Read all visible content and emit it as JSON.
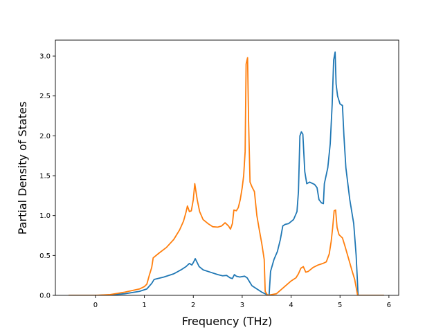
{
  "chart_data": {
    "type": "line",
    "title": "",
    "xlabel": "Frequency (THz)",
    "ylabel": "Partial Density of States",
    "xlim": [
      -0.82,
      6.2
    ],
    "ylim": [
      0.0,
      3.2
    ],
    "xticks": [
      "0",
      "1",
      "2",
      "3",
      "4",
      "5",
      "6"
    ],
    "yticks": [
      "0.0",
      "0.5",
      "1.0",
      "1.5",
      "2.0",
      "2.5",
      "3.0"
    ],
    "grid": false,
    "legend": "none",
    "series": [
      {
        "color": "#1f77b4",
        "points": [
          [
            -0.55,
            0.0
          ],
          [
            0.0,
            0.0
          ],
          [
            0.3,
            0.005
          ],
          [
            0.6,
            0.02
          ],
          [
            0.9,
            0.05
          ],
          [
            1.05,
            0.08
          ],
          [
            1.15,
            0.15
          ],
          [
            1.2,
            0.2
          ],
          [
            1.4,
            0.23
          ],
          [
            1.6,
            0.27
          ],
          [
            1.75,
            0.32
          ],
          [
            1.85,
            0.36
          ],
          [
            1.92,
            0.4
          ],
          [
            1.97,
            0.38
          ],
          [
            2.0,
            0.41
          ],
          [
            2.04,
            0.46
          ],
          [
            2.08,
            0.41
          ],
          [
            2.12,
            0.36
          ],
          [
            2.2,
            0.32
          ],
          [
            2.35,
            0.29
          ],
          [
            2.5,
            0.26
          ],
          [
            2.6,
            0.245
          ],
          [
            2.68,
            0.25
          ],
          [
            2.75,
            0.22
          ],
          [
            2.8,
            0.21
          ],
          [
            2.84,
            0.26
          ],
          [
            2.88,
            0.24
          ],
          [
            2.95,
            0.23
          ],
          [
            3.05,
            0.24
          ],
          [
            3.1,
            0.22
          ],
          [
            3.15,
            0.17
          ],
          [
            3.2,
            0.12
          ],
          [
            3.3,
            0.08
          ],
          [
            3.4,
            0.04
          ],
          [
            3.5,
            0.01
          ],
          [
            3.55,
            0.0
          ],
          [
            3.58,
            0.3
          ],
          [
            3.65,
            0.45
          ],
          [
            3.72,
            0.55
          ],
          [
            3.78,
            0.7
          ],
          [
            3.83,
            0.87
          ],
          [
            3.88,
            0.89
          ],
          [
            3.95,
            0.9
          ],
          [
            4.05,
            0.95
          ],
          [
            4.12,
            1.05
          ],
          [
            4.15,
            1.3
          ],
          [
            4.18,
            2.0
          ],
          [
            4.21,
            2.05
          ],
          [
            4.24,
            2.02
          ],
          [
            4.28,
            1.55
          ],
          [
            4.32,
            1.4
          ],
          [
            4.38,
            1.42
          ],
          [
            4.48,
            1.39
          ],
          [
            4.53,
            1.35
          ],
          [
            4.57,
            1.2
          ],
          [
            4.62,
            1.16
          ],
          [
            4.66,
            1.15
          ],
          [
            4.68,
            1.4
          ],
          [
            4.75,
            1.6
          ],
          [
            4.8,
            1.9
          ],
          [
            4.84,
            2.4
          ],
          [
            4.87,
            2.95
          ],
          [
            4.9,
            3.05
          ],
          [
            4.92,
            2.65
          ],
          [
            4.95,
            2.5
          ],
          [
            5.0,
            2.4
          ],
          [
            5.05,
            2.38
          ],
          [
            5.08,
            2.0
          ],
          [
            5.12,
            1.6
          ],
          [
            5.2,
            1.2
          ],
          [
            5.28,
            0.9
          ],
          [
            5.33,
            0.5
          ],
          [
            5.37,
            0.0
          ],
          [
            5.9,
            0.0
          ]
        ]
      },
      {
        "color": "#ff7f0e",
        "points": [
          [
            -0.55,
            0.0
          ],
          [
            0.0,
            0.0
          ],
          [
            0.3,
            0.01
          ],
          [
            0.6,
            0.04
          ],
          [
            0.9,
            0.08
          ],
          [
            1.0,
            0.11
          ],
          [
            1.05,
            0.14
          ],
          [
            1.1,
            0.25
          ],
          [
            1.15,
            0.35
          ],
          [
            1.18,
            0.47
          ],
          [
            1.3,
            0.53
          ],
          [
            1.45,
            0.6
          ],
          [
            1.6,
            0.7
          ],
          [
            1.72,
            0.82
          ],
          [
            1.8,
            0.93
          ],
          [
            1.85,
            1.04
          ],
          [
            1.88,
            1.12
          ],
          [
            1.92,
            1.05
          ],
          [
            1.96,
            1.06
          ],
          [
            2.0,
            1.2
          ],
          [
            2.03,
            1.4
          ],
          [
            2.08,
            1.2
          ],
          [
            2.13,
            1.05
          ],
          [
            2.2,
            0.95
          ],
          [
            2.3,
            0.9
          ],
          [
            2.4,
            0.86
          ],
          [
            2.5,
            0.855
          ],
          [
            2.58,
            0.87
          ],
          [
            2.65,
            0.91
          ],
          [
            2.72,
            0.87
          ],
          [
            2.76,
            0.83
          ],
          [
            2.8,
            0.9
          ],
          [
            2.83,
            1.07
          ],
          [
            2.88,
            1.06
          ],
          [
            2.92,
            1.1
          ],
          [
            2.96,
            1.2
          ],
          [
            3.0,
            1.35
          ],
          [
            3.03,
            1.5
          ],
          [
            3.06,
            1.8
          ],
          [
            3.08,
            2.9
          ],
          [
            3.11,
            2.98
          ],
          [
            3.13,
            2.2
          ],
          [
            3.16,
            1.42
          ],
          [
            3.2,
            1.36
          ],
          [
            3.25,
            1.3
          ],
          [
            3.3,
            1.0
          ],
          [
            3.35,
            0.82
          ],
          [
            3.4,
            0.65
          ],
          [
            3.45,
            0.45
          ],
          [
            3.47,
            0.05
          ],
          [
            3.52,
            0.0
          ],
          [
            3.7,
            0.02
          ],
          [
            3.85,
            0.1
          ],
          [
            4.0,
            0.18
          ],
          [
            4.1,
            0.22
          ],
          [
            4.15,
            0.27
          ],
          [
            4.2,
            0.34
          ],
          [
            4.25,
            0.36
          ],
          [
            4.3,
            0.29
          ],
          [
            4.35,
            0.3
          ],
          [
            4.45,
            0.35
          ],
          [
            4.55,
            0.38
          ],
          [
            4.65,
            0.4
          ],
          [
            4.72,
            0.42
          ],
          [
            4.78,
            0.52
          ],
          [
            4.82,
            0.68
          ],
          [
            4.85,
            0.85
          ],
          [
            4.88,
            1.06
          ],
          [
            4.91,
            1.07
          ],
          [
            4.94,
            0.85
          ],
          [
            4.98,
            0.76
          ],
          [
            5.05,
            0.72
          ],
          [
            5.1,
            0.62
          ],
          [
            5.18,
            0.45
          ],
          [
            5.25,
            0.3
          ],
          [
            5.3,
            0.2
          ],
          [
            5.36,
            0.0
          ],
          [
            5.9,
            0.0
          ]
        ]
      }
    ]
  }
}
